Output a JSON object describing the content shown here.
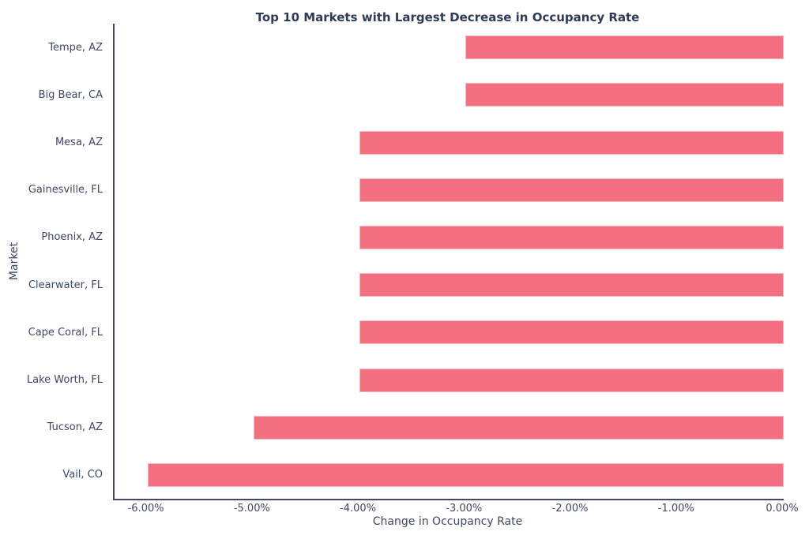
{
  "chart_data": {
    "type": "bar",
    "orientation": "horizontal",
    "title": "Top 10 Markets with Largest Decrease in Occupancy Rate",
    "xlabel": "Change in Occupancy Rate",
    "ylabel": "Market",
    "categories": [
      "Tempe, AZ",
      "Big Bear, CA",
      "Mesa, AZ",
      "Gainesville, FL",
      "Phoenix, AZ",
      "Clearwater, FL",
      "Cape Coral, FL",
      "Lake Worth, FL",
      "Tucson, AZ",
      "Vail, CO"
    ],
    "values": [
      -3.0,
      -3.0,
      -4.0,
      -4.0,
      -4.0,
      -4.0,
      -4.0,
      -4.0,
      -5.0,
      -6.0
    ],
    "x_ticks": [
      {
        "value": -6,
        "label": "-6.00%"
      },
      {
        "value": -5,
        "label": "-5.00%"
      },
      {
        "value": -4,
        "label": "-4.00%"
      },
      {
        "value": -3,
        "label": "-3.00%"
      },
      {
        "value": -2,
        "label": "-2.00%"
      },
      {
        "value": -1,
        "label": "-1.00%"
      },
      {
        "value": 0,
        "label": "0.00%"
      }
    ],
    "xlim": [
      -6.31,
      0
    ],
    "grid": false,
    "legend": null,
    "colors": {
      "bar": "#f2707f",
      "bar_edge": "#f7b6c0",
      "axis_line": "#434960",
      "text": "#3d4766",
      "title_text": "#2e3a57",
      "background": "#ffffff"
    }
  }
}
